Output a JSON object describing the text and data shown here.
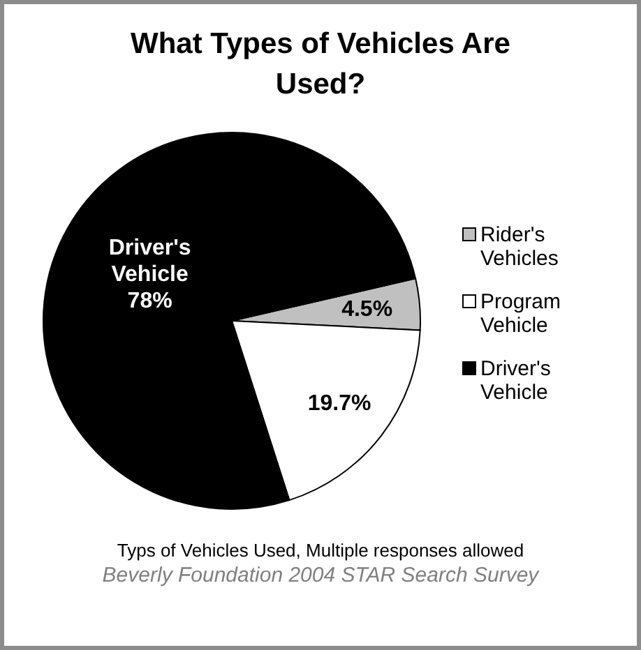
{
  "chart_data": {
    "type": "pie",
    "title": "What Types of Vehicles Are Used?",
    "categories": [
      "Rider's Vehicles",
      "Program Vehicle",
      "Driver's Vehicle"
    ],
    "values": [
      4.5,
      19.7,
      78
    ],
    "colors": [
      "#c0c0c0",
      "#ffffff",
      "#000000"
    ],
    "value_labels": [
      "4.5%",
      "19.7%",
      "Driver's Vehicle 78%"
    ],
    "legend": "right",
    "annotations": [
      "Typs of Vehicles Used, Multiple responses allowed",
      "Beverly Foundation 2004 STAR Search Survey"
    ]
  }
}
